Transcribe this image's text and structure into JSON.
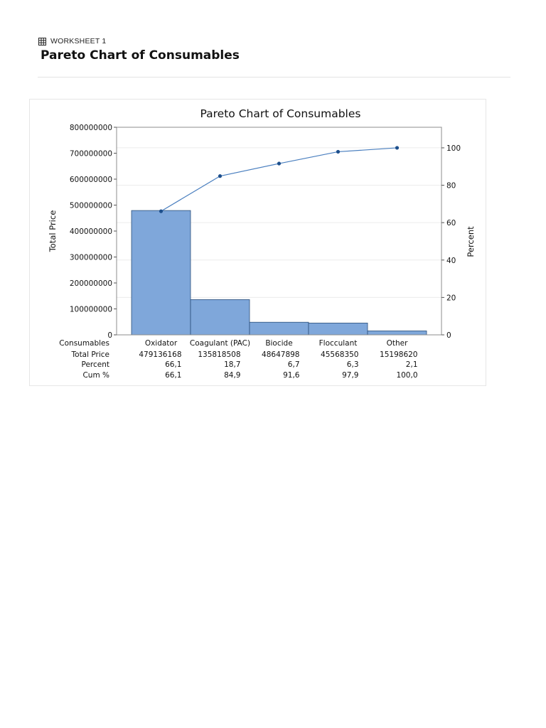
{
  "header": {
    "worksheet_label": "WORKSHEET 1",
    "page_title": "Pareto Chart of Consumables"
  },
  "chart_data": {
    "type": "bar",
    "title": "Pareto Chart of Consumables",
    "xlabel": "Consumables",
    "ylabel": "Total Price",
    "y2label": "Percent",
    "categories": [
      "Oxidator",
      "Coagulant (PAC)",
      "Biocide",
      "Flocculant",
      "Other"
    ],
    "values": [
      479136168,
      135818508,
      48647898,
      45568350,
      15198620
    ],
    "percent": [
      "66,1",
      "18,7",
      "6,7",
      "6,3",
      "2,1"
    ],
    "cum_percent": [
      66.1,
      84.9,
      91.6,
      97.9,
      100.0
    ],
    "cum_percent_labels": [
      "66,1",
      "84,9",
      "91,6",
      "97,9",
      "100,0"
    ],
    "ylim": [
      0,
      800000000
    ],
    "yticks": [
      "0",
      "100000000",
      "200000000",
      "300000000",
      "400000000",
      "500000000",
      "600000000",
      "700000000",
      "800000000"
    ],
    "y2lim": [
      0,
      100
    ],
    "y2ticks": [
      "0",
      "20",
      "40",
      "60",
      "80",
      "100"
    ],
    "table_row_labels": [
      "Consumables",
      "Total Price",
      "Percent",
      "Cum %"
    ],
    "grid": true,
    "colors": {
      "bar": "#7fa7da",
      "bar_edge": "#2b4f7a",
      "line": "#4a7fbf",
      "marker": "#1d4f8c"
    }
  }
}
